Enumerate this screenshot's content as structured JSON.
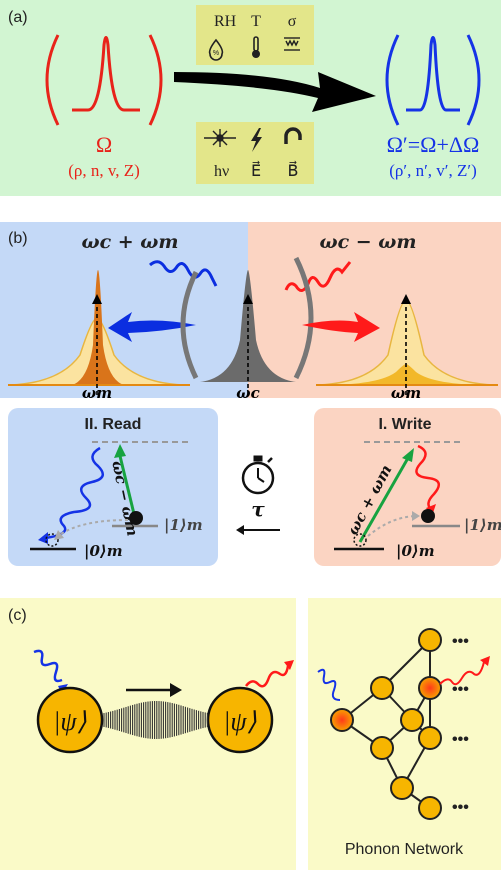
{
  "panel_a": {
    "label": "(a)",
    "left_symbol": "Ω",
    "left_params": "(ρ, n, v, Z)",
    "right_symbol": "Ω′=Ω+ΔΩ",
    "right_params": "(ρ′, n′, v′, Z′)",
    "top_box": [
      "RH",
      "T",
      "σ"
    ],
    "bottom_box": [
      "hν",
      "E⃗",
      "B⃗"
    ],
    "colors": {
      "left": "#e8231a",
      "right": "#1533e6",
      "background": "#d2f5d2",
      "box": "#e3e68a"
    }
  },
  "panel_b": {
    "label": "(b)",
    "sum_freq": "ωc + ωm",
    "diff_freq": "ωc − ωm",
    "left_axis": "ωm",
    "center_axis": "ωc",
    "right_axis": "ωm",
    "read_title": "II. Read",
    "write_title": "I. Write",
    "read_transition": "ωc − ωm",
    "write_transition": "ωc + ωm",
    "ket_one": "|1⟩m",
    "ket_zero": "|0⟩m",
    "tau": "τ",
    "colors": {
      "left_bg": "#c4d9f7",
      "right_bg": "#fbd4c2"
    }
  },
  "panel_c": {
    "label": "(c)",
    "psi_left": "|ψ⟩",
    "psi_right": "|ψ⟩",
    "dots": [
      "•••",
      "•••",
      "•••",
      "•••"
    ],
    "network_caption": "Phonon Network",
    "colors": {
      "bg": "#fafac8",
      "node": "#f7b500"
    }
  }
}
